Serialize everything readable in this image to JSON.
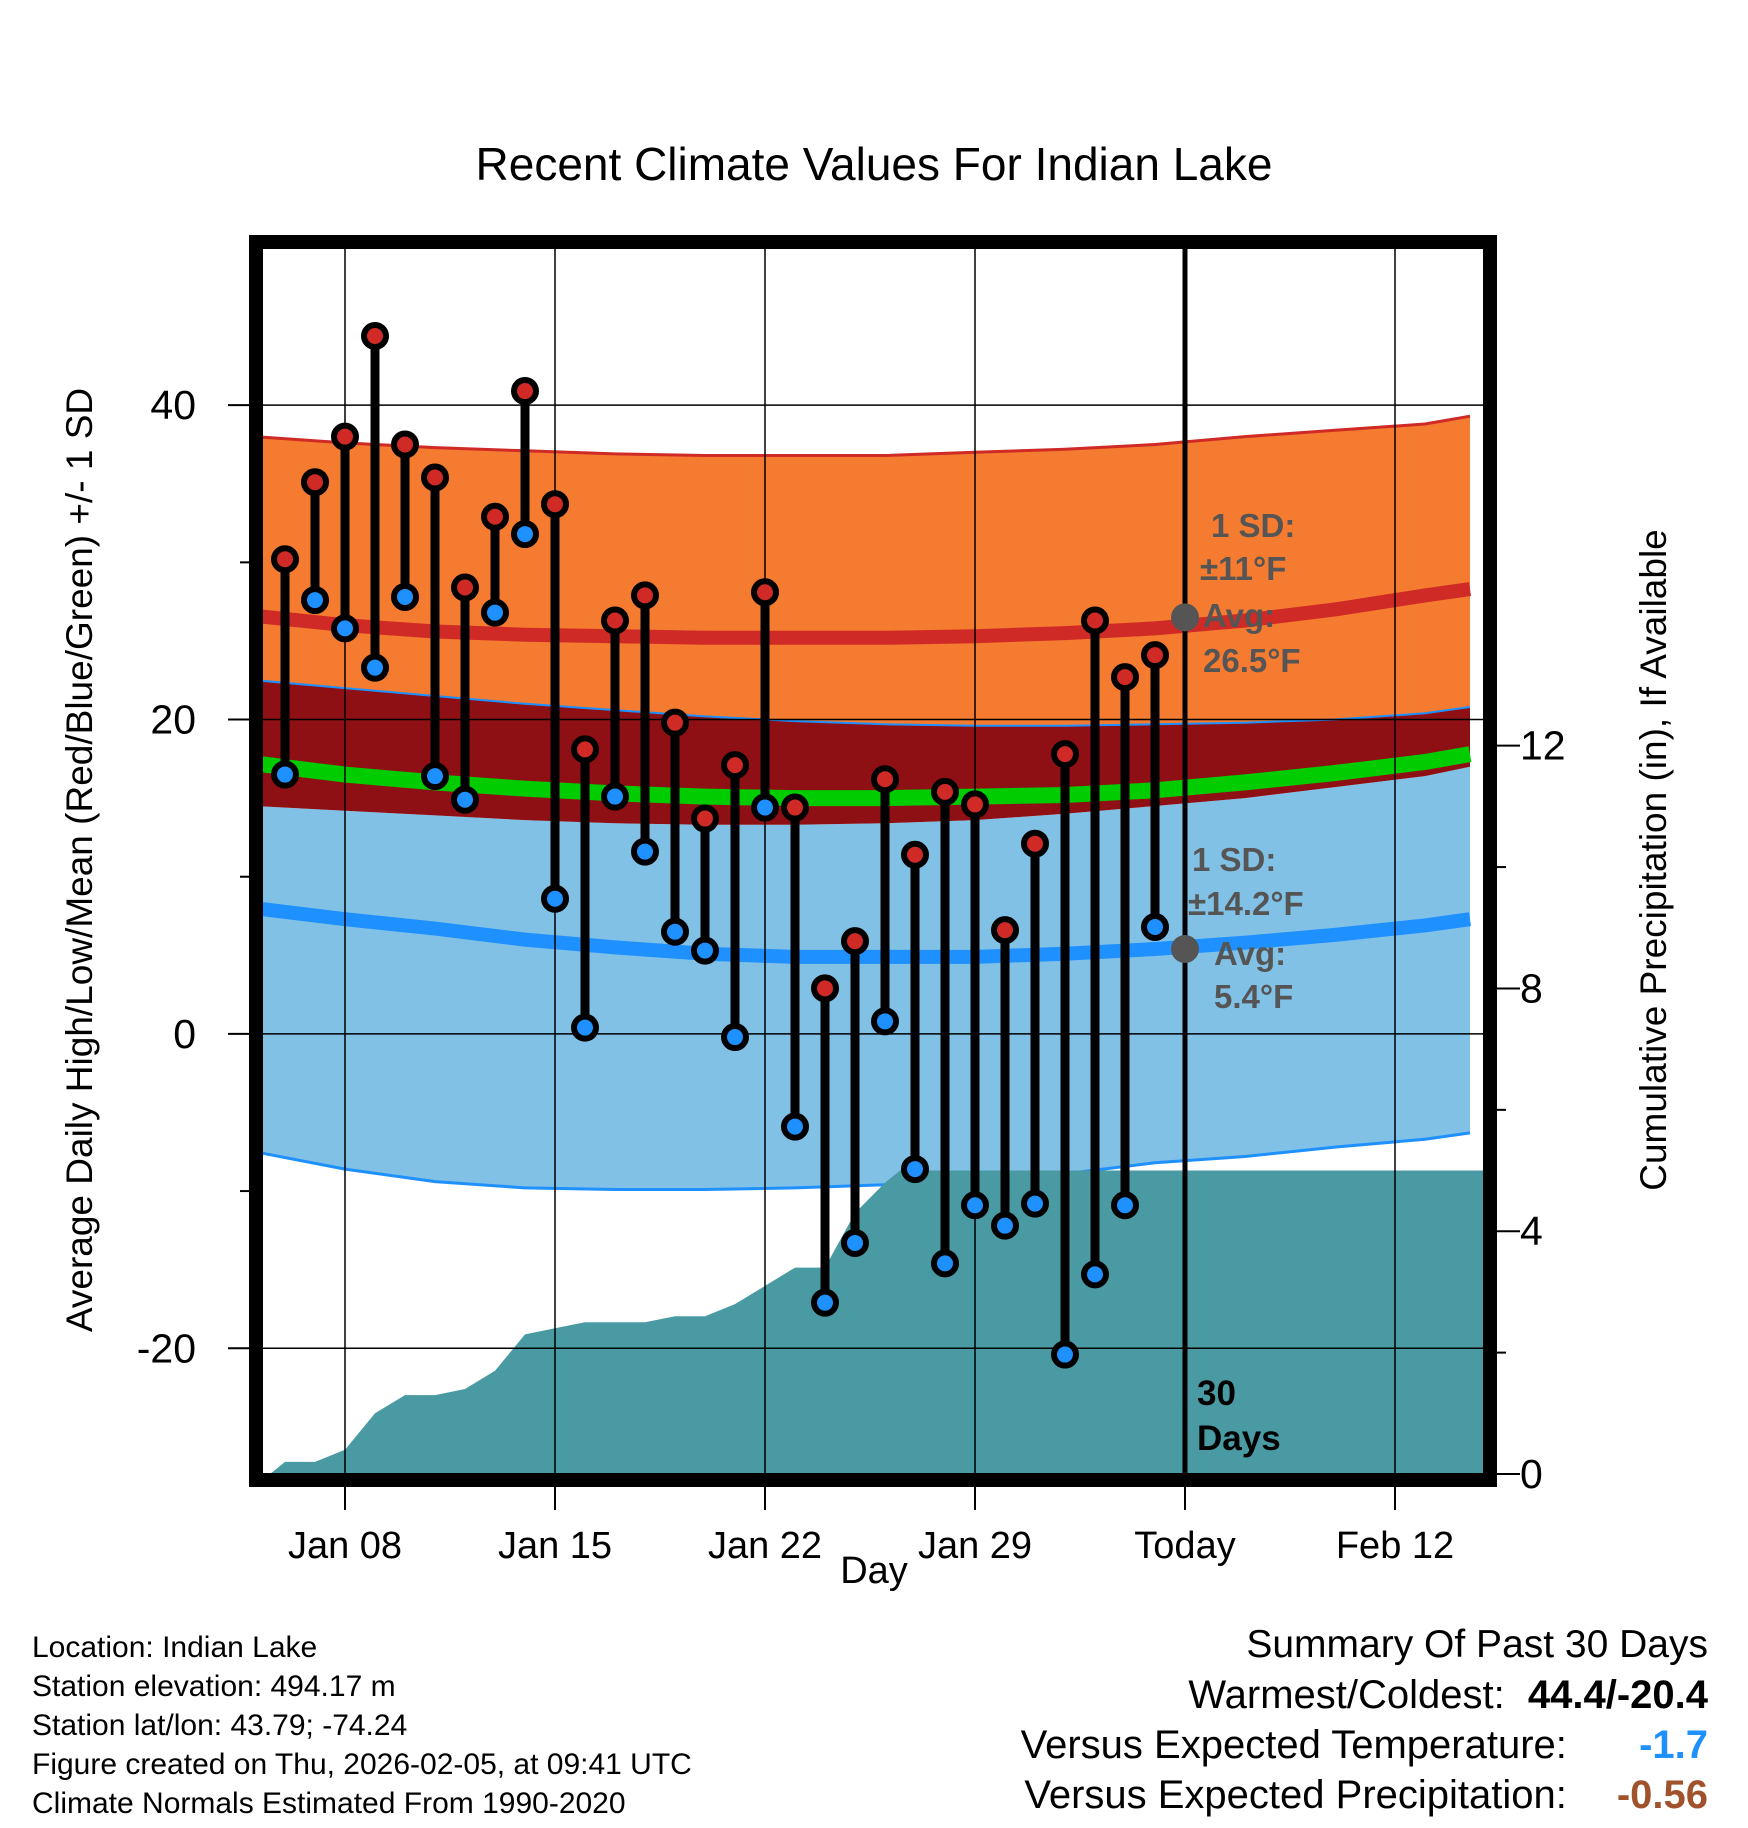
{
  "chart_data": {
    "type": "line",
    "title": "Recent Climate Values For Indian Lake",
    "xlabel": "Day",
    "ylabel": "Average Daily High/Low/Mean (Red/Blue/Green) +/- 1 SD",
    "y2label": "Cumulative Precipitation (in), If Available",
    "ylim": [
      -28,
      50
    ],
    "y2lim": [
      0,
      20.2
    ],
    "yticks": [
      "40",
      "20",
      "0",
      "-20"
    ],
    "y2ticks": [
      "12",
      "8",
      "4",
      "0"
    ],
    "xticks": [
      "Jan 08",
      "Jan 15",
      "Jan 22",
      "Jan 29",
      "Today",
      "Feb 12"
    ],
    "x_domain_days": [
      -15.2,
      25.2
    ],
    "today_index": 31,
    "tick_day_index": [
      3,
      10,
      17,
      24,
      31,
      38
    ],
    "normals": {
      "days": [
        0,
        3,
        6,
        9,
        12,
        15,
        18,
        21,
        24,
        27,
        30,
        33,
        36,
        39,
        40.5
      ],
      "high_avg": [
        26.6,
        26.0,
        25.6,
        25.4,
        25.3,
        25.2,
        25.2,
        25.2,
        25.3,
        25.5,
        25.8,
        26.3,
        27.0,
        27.9,
        28.3
      ],
      "high_upper": [
        38.0,
        37.6,
        37.3,
        37.1,
        36.9,
        36.8,
        36.8,
        36.8,
        37.0,
        37.2,
        37.5,
        38.0,
        38.4,
        38.8,
        39.3
      ],
      "high_lower": [
        22.5,
        22.0,
        21.5,
        21.0,
        20.6,
        20.2,
        19.9,
        19.7,
        19.6,
        19.6,
        19.7,
        19.8,
        20.0,
        20.4,
        20.8
      ],
      "mean_avg": [
        17.2,
        16.5,
        16.0,
        15.6,
        15.3,
        15.1,
        15.0,
        15.0,
        15.1,
        15.2,
        15.5,
        16.0,
        16.6,
        17.3,
        17.8
      ],
      "low_avg": [
        8.0,
        7.3,
        6.7,
        6.0,
        5.5,
        5.1,
        4.9,
        4.9,
        4.9,
        5.1,
        5.4,
        5.8,
        6.3,
        6.9,
        7.3
      ],
      "low_upper": [
        14.5,
        14.2,
        13.9,
        13.6,
        13.4,
        13.3,
        13.3,
        13.4,
        13.6,
        14.0,
        14.5,
        15.0,
        15.7,
        16.4,
        17.0
      ],
      "low_lower": [
        -7.5,
        -8.6,
        -9.4,
        -9.8,
        -9.9,
        -9.9,
        -9.8,
        -9.6,
        -9.3,
        -8.9,
        -8.2,
        -7.8,
        -7.2,
        -6.7,
        -6.3
      ]
    },
    "observed": [
      {
        "day": "Jan 06",
        "high": 30.2,
        "low": 16.5
      },
      {
        "day": "Jan 07",
        "high": 35.1,
        "low": 27.6
      },
      {
        "day": "Jan 08",
        "high": 38.0,
        "low": 25.8
      },
      {
        "day": "Jan 09",
        "high": 44.4,
        "low": 23.3
      },
      {
        "day": "Jan 10",
        "high": 37.5,
        "low": 27.8
      },
      {
        "day": "Jan 11",
        "high": 35.4,
        "low": 16.4
      },
      {
        "day": "Jan 12",
        "high": 28.4,
        "low": 14.9
      },
      {
        "day": "Jan 13",
        "high": 32.9,
        "low": 26.8
      },
      {
        "day": "Jan 14",
        "high": 40.9,
        "low": 31.8
      },
      {
        "day": "Jan 15",
        "high": 33.7,
        "low": 8.6
      },
      {
        "day": "Jan 16",
        "high": 18.1,
        "low": 0.4
      },
      {
        "day": "Jan 17",
        "high": 26.3,
        "low": 15.1
      },
      {
        "day": "Jan 18",
        "high": 27.9,
        "low": 11.6
      },
      {
        "day": "Jan 19",
        "high": 19.8,
        "low": 6.5
      },
      {
        "day": "Jan 20",
        "high": 13.7,
        "low": 5.3
      },
      {
        "day": "Jan 21",
        "high": 17.1,
        "low": -0.2
      },
      {
        "day": "Jan 22",
        "high": 28.1,
        "low": 14.4
      },
      {
        "day": "Jan 23",
        "high": 14.4,
        "low": -5.9
      },
      {
        "day": "Jan 24",
        "high": 2.9,
        "low": -17.1
      },
      {
        "day": "Jan 25",
        "high": 5.9,
        "low": -13.3
      },
      {
        "day": "Jan 26",
        "high": 16.2,
        "low": 0.8
      },
      {
        "day": "Jan 27",
        "high": 11.4,
        "low": -8.6
      },
      {
        "day": "Jan 28",
        "high": 15.4,
        "low": -14.6
      },
      {
        "day": "Jan 29",
        "high": 14.6,
        "low": -10.9
      },
      {
        "day": "Jan 30",
        "high": 6.6,
        "low": -12.2
      },
      {
        "day": "Jan 31",
        "high": 12.1,
        "low": -10.8
      },
      {
        "day": "Feb 01",
        "high": 17.8,
        "low": -20.4
      },
      {
        "day": "Feb 02",
        "high": 26.3,
        "low": -15.3
      },
      {
        "day": "Feb 03",
        "high": 22.7,
        "low": -10.9
      },
      {
        "day": "Feb 04",
        "high": 24.1,
        "low": 6.8
      }
    ],
    "precip_cumulative": {
      "days": [
        0,
        0.5,
        1,
        2,
        3,
        4,
        5,
        6,
        7,
        8,
        9,
        10,
        11,
        12,
        13,
        14,
        15,
        16,
        17,
        18,
        19,
        20,
        21,
        21.5,
        22,
        23,
        30
      ],
      "values": [
        0,
        0,
        0.2,
        0.2,
        0.4,
        1.0,
        1.3,
        1.3,
        1.4,
        1.7,
        2.3,
        2.4,
        2.5,
        2.5,
        2.5,
        2.6,
        2.6,
        2.8,
        3.1,
        3.4,
        3.4,
        4.3,
        4.8,
        5.0,
        5.0,
        5.0,
        5.0
      ]
    },
    "annotations": {
      "high_sd": [
        "1 SD:",
        "±11°F"
      ],
      "high_avg": [
        "Avg:",
        "26.5°F"
      ],
      "low_sd": [
        "1 SD:",
        "±14.2°F"
      ],
      "low_avg": [
        "Avg:",
        "5.4°F"
      ],
      "period": [
        "30",
        "Days"
      ],
      "today_high_avg": 26.5,
      "today_low_avg": 5.4
    },
    "colors": {
      "high_band": "#f47b2f",
      "high_line": "#cf2a26",
      "overlap_band": "#8f1014",
      "mean_line": "#00cc00",
      "low_band": "#82c1e6",
      "low_line": "#1e90ff",
      "low_edge": "#1e90ff",
      "precip": "#4a9aa3",
      "high_dot": "#cf2a26",
      "low_dot": "#1e90ff",
      "annotation": "#555555"
    }
  },
  "info": {
    "location": "Location: Indian Lake",
    "elevation": "Station elevation: 494.17 m",
    "latlon": "Station lat/lon: 43.79; -74.24",
    "created": "Figure created on Thu, 2026-02-05, at 09:41 UTC",
    "normals": "Climate Normals Estimated From 1990-2020"
  },
  "summary": {
    "title": "Summary Of Past 30 Days",
    "warm_cold_label": "Warmest/Coldest:",
    "warm_cold_value": "44.4/-20.4",
    "temp_label": "Versus Expected Temperature:",
    "temp_value": "-1.7",
    "temp_color": "#1e90ff",
    "precip_label": "Versus Expected Precipitation:",
    "precip_value": "-0.56",
    "precip_color": "#a0522d"
  }
}
